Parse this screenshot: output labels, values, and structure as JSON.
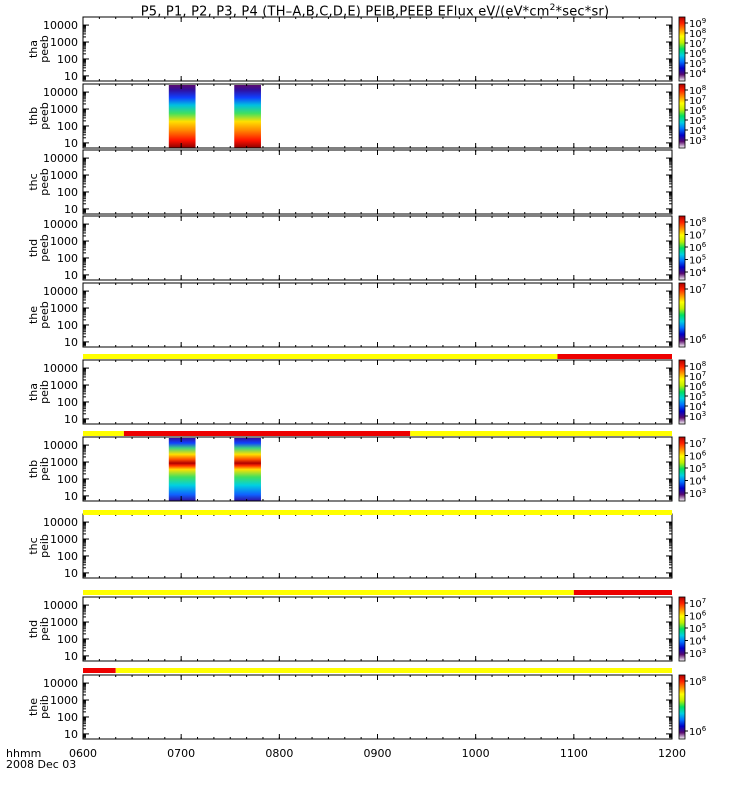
{
  "title": {
    "main": "P5, P1, P2, P3, P4 (TH–A,B,C,D,E) PEIB,PEEB EFlux eV/(eV*cm",
    "sup": "2",
    "tail": "*sec*sr)"
  },
  "time_axis": {
    "label": "hhmm",
    "date": "2008 Dec 03",
    "ticks": [
      "0600",
      "0700",
      "0800",
      "0900",
      "1000",
      "1100",
      "1200"
    ]
  },
  "colors": {
    "flag_yellow": "#ffff00",
    "flag_red": "#ee0000",
    "colorbar": [
      "#ffffff",
      "#5a0a6e",
      "#0000c8",
      "#0070ff",
      "#00d0e0",
      "#00e060",
      "#c0f000",
      "#ffff00",
      "#ff9000",
      "#ff2000",
      "#b00000"
    ]
  },
  "chart_data": {
    "type": "heatmap",
    "x_range": [
      "0600",
      "1200"
    ],
    "y_scale": "log",
    "y_ticks": [
      "10",
      "100",
      "1000",
      "10000"
    ],
    "panels": [
      {
        "probe": "tha",
        "species": "peeb",
        "colorbar_ticks": [
          [
            "10",
            4
          ],
          [
            "10",
            5
          ],
          [
            "10",
            6
          ],
          [
            "10",
            7
          ],
          [
            "10",
            8
          ],
          [
            "10",
            9
          ]
        ],
        "data_intervals": []
      },
      {
        "probe": "thb",
        "species": "peeb",
        "colorbar_ticks": [
          [
            "10",
            3
          ],
          [
            "10",
            4
          ],
          [
            "10",
            5
          ],
          [
            "10",
            6
          ],
          [
            "10",
            7
          ],
          [
            "10",
            8
          ]
        ],
        "data_intervals": [
          [
            "0650",
            "0710"
          ],
          [
            "0730",
            "0750"
          ]
        ]
      },
      {
        "probe": "thc",
        "species": "peeb",
        "colorbar_ticks": [],
        "data_intervals": []
      },
      {
        "probe": "thd",
        "species": "peeb",
        "colorbar_ticks": [
          [
            "10",
            4
          ],
          [
            "10",
            5
          ],
          [
            "10",
            6
          ],
          [
            "10",
            7
          ],
          [
            "10",
            8
          ]
        ],
        "data_intervals": []
      },
      {
        "probe": "the",
        "species": "peeb",
        "colorbar_ticks": [
          [
            "10",
            6
          ],
          [
            "10",
            7
          ]
        ],
        "data_intervals": []
      },
      {
        "probe": "tha",
        "species": "peib",
        "colorbar_ticks": [
          [
            "10",
            3
          ],
          [
            "10",
            4
          ],
          [
            "10",
            5
          ],
          [
            "10",
            6
          ],
          [
            "10",
            7
          ],
          [
            "10",
            8
          ]
        ],
        "data_intervals": []
      },
      {
        "probe": "thb",
        "species": "peib",
        "colorbar_ticks": [
          [
            "10",
            3
          ],
          [
            "10",
            4
          ],
          [
            "10",
            5
          ],
          [
            "10",
            6
          ],
          [
            "10",
            7
          ]
        ],
        "data_intervals": [
          [
            "0650",
            "0710"
          ],
          [
            "0730",
            "0750"
          ]
        ]
      },
      {
        "probe": "thc",
        "species": "peib",
        "colorbar_ticks": [],
        "data_intervals": []
      },
      {
        "probe": "thd",
        "species": "peib",
        "colorbar_ticks": [
          [
            "10",
            3
          ],
          [
            "10",
            4
          ],
          [
            "10",
            5
          ],
          [
            "10",
            6
          ],
          [
            "10",
            7
          ]
        ],
        "data_intervals": []
      },
      {
        "probe": "the",
        "species": "peib",
        "colorbar_ticks": [
          [
            "10",
            6
          ],
          [
            "10",
            8
          ]
        ],
        "data_intervals": []
      }
    ],
    "flag_bars": [
      {
        "segments": [
          {
            "from": "0600",
            "to": "1050",
            "color": "yellow"
          },
          {
            "from": "1050",
            "to": "1200",
            "color": "red"
          }
        ]
      },
      {
        "segments": [
          {
            "from": "0600",
            "to": "0625",
            "color": "yellow"
          },
          {
            "from": "0625",
            "to": "0920",
            "color": "red"
          },
          {
            "from": "0920",
            "to": "1200",
            "color": "yellow"
          }
        ]
      },
      {
        "segments": [
          {
            "from": "0600",
            "to": "1200",
            "color": "yellow"
          }
        ]
      },
      {
        "segments": [
          {
            "from": "0600",
            "to": "1100",
            "color": "yellow"
          },
          {
            "from": "1100",
            "to": "1200",
            "color": "red"
          }
        ]
      },
      {
        "segments": [
          {
            "from": "0600",
            "to": "0620",
            "color": "red"
          },
          {
            "from": "0620",
            "to": "1200",
            "color": "yellow"
          }
        ]
      }
    ]
  }
}
